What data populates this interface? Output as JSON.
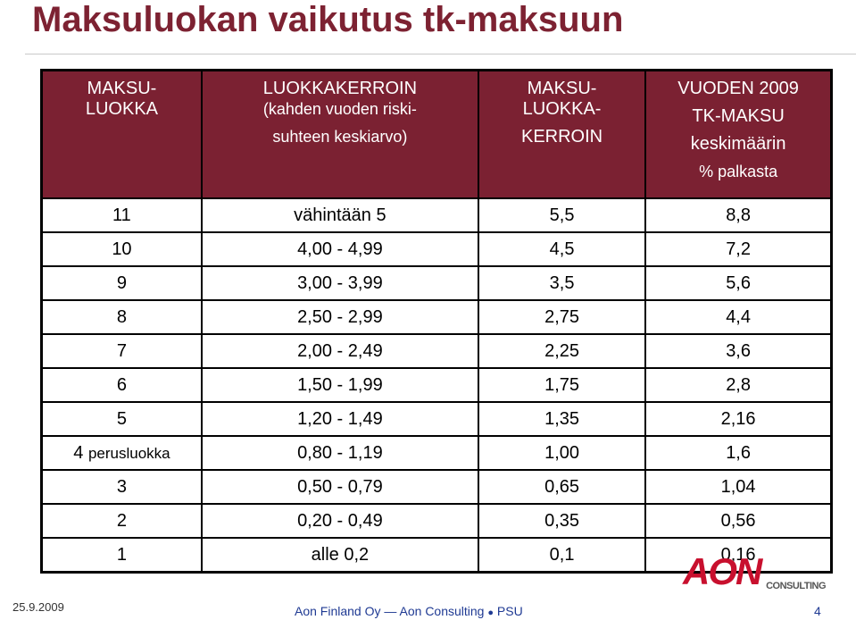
{
  "slide": {
    "title": "Maksuluokan vaikutus tk-maksuun"
  },
  "table": {
    "headers": {
      "col1": [
        "MAKSU-",
        "LUOKKA"
      ],
      "col2": [
        "LUOKKAKERROIN",
        "(kahden vuoden riski-",
        "suhteen keskiarvo)"
      ],
      "col3": [
        "MAKSU-",
        "LUOKKA-",
        "KERROIN"
      ],
      "col4": [
        "VUODEN 2009",
        "TK-MAKSU",
        "keskimäärin",
        "% palkasta"
      ]
    },
    "rows": [
      {
        "class": "11",
        "note": "",
        "range": "vähintään 5",
        "factor": "5,5",
        "fee": "8,8"
      },
      {
        "class": "10",
        "note": "",
        "range": "4,00 - 4,99",
        "factor": "4,5",
        "fee": "7,2"
      },
      {
        "class": "9",
        "note": "",
        "range": "3,00 - 3,99",
        "factor": "3,5",
        "fee": "5,6"
      },
      {
        "class": "8",
        "note": "",
        "range": "2,50 - 2,99",
        "factor": "2,75",
        "fee": "4,4"
      },
      {
        "class": "7",
        "note": "",
        "range": "2,00 - 2,49",
        "factor": "2,25",
        "fee": "3,6"
      },
      {
        "class": "6",
        "note": "",
        "range": "1,50 - 1,99",
        "factor": "1,75",
        "fee": "2,8"
      },
      {
        "class": "5",
        "note": "",
        "range": "1,20 - 1,49",
        "factor": "1,35",
        "fee": "2,16"
      },
      {
        "class": "4",
        "note": "perusluokka",
        "range": "0,80 - 1,19",
        "factor": "1,00",
        "fee": "1,6"
      },
      {
        "class": "3",
        "note": "",
        "range": "0,50 - 0,79",
        "factor": "0,65",
        "fee": "1,04"
      },
      {
        "class": "2",
        "note": "",
        "range": "0,20 - 0,49",
        "factor": "0,35",
        "fee": "0,56"
      },
      {
        "class": "1",
        "note": "",
        "range": "alle 0,2",
        "factor": "0,1",
        "fee": "0,16"
      }
    ]
  },
  "footer": {
    "date": "25.9.2009",
    "company": "Aon Finland Oy",
    "dash": "—",
    "unit": "Aon Consulting",
    "bullet": "●",
    "dept": "PSU",
    "page": "4"
  },
  "logo": {
    "word": "AON",
    "sub": "CONSULTING",
    "color": "#c8102e"
  },
  "colors": {
    "title": "#7d2232",
    "header_bg": "#7b2132"
  }
}
